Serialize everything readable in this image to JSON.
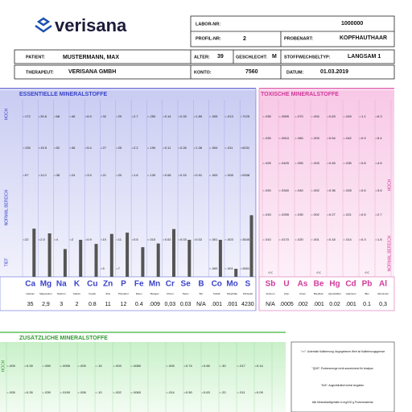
{
  "logo": "verisana",
  "header": {
    "labor_nr": {
      "label": "LABOR-NR:",
      "value": "1000000"
    },
    "profil_nr": {
      "label": "PROFIL-NR:",
      "value": "2"
    },
    "probenart": {
      "label": "PROBENART:",
      "value": "KOPFHAUTHAAR"
    },
    "patient": {
      "label": "PATIENT:",
      "value": "MUSTERMANN, MAX"
    },
    "alter": {
      "label": "ALTER:",
      "value": "39"
    },
    "geschlecht": {
      "label": "GESCHLECHT:",
      "value": "M"
    },
    "stoffwechseltyp": {
      "label": "STOFFWECHSELTYP:",
      "value": "LANGSAM 1"
    },
    "therapeut": {
      "label": "THERAPEUT:",
      "value": "VERISANA GMBH"
    },
    "konto": {
      "label": "KONTO:",
      "value": "7560"
    },
    "datum": {
      "label": "DATUM:",
      "value": "01.03.2019"
    }
  },
  "essential": {
    "title": "ESSENTIELLE MINERALSTOFFE",
    "axis_labels": [
      "HOCH",
      "NORMAL BEREICH",
      "TIEF"
    ],
    "symbols": [
      "Ca",
      "Mg",
      "Na",
      "K",
      "Cu",
      "Zn",
      "P",
      "Fe",
      "Mn",
      "Cr",
      "Se",
      "B",
      "Co",
      "Mo",
      "S"
    ],
    "names": [
      "Calcium",
      "Magnesium",
      "Natrium",
      "Kalium",
      "Kupfer",
      "Zink",
      "Phosphor",
      "Eisen",
      "Mangan",
      "Chrom",
      "Selen",
      "Bor",
      "Kobalt",
      "Molybdän",
      "Schwefel"
    ],
    "scale": [
      [
        "172",
        "30.6",
        "68",
        "46",
        "6.9",
        "32",
        "29",
        "2.7",
        ".250",
        "0.14",
        "0.33",
        "1.80",
        ".005",
        ".013",
        "7125"
      ],
      [
        "135",
        "15.5",
        "52",
        "36",
        "5.4",
        "27",
        "25",
        "2.2",
        ".190",
        "0.11",
        "0.26",
        "1.36",
        ".004",
        ".011",
        "6231"
      ],
      [
        "97",
        "11.0",
        "38",
        "24",
        "3.9",
        "21",
        "20",
        "1.6",
        ".130",
        "0.08",
        "0.15",
        "0.91",
        ".003",
        ".008",
        "5338"
      ],
      [
        "22",
        "2.0",
        "4",
        "2",
        "0.9",
        "10",
        "11",
        "0.5",
        ".010",
        "0.02",
        "0.03",
        "0.02",
        ".001",
        ".003",
        "3545"
      ],
      [
        null,
        null,
        null,
        null,
        null,
        "5",
        "7",
        null,
        null,
        null,
        null,
        null,
        ".000",
        ".001",
        "2651"
      ]
    ],
    "results": [
      "35",
      "2,9",
      "3",
      "2",
      "0.8",
      "11",
      "12",
      "0.4",
      ".009",
      "0,03",
      "0.03",
      "N/A",
      ".001",
      ".001",
      "4230"
    ]
  },
  "toxic": {
    "title": "TOXISCHE MINERALSTOFFE",
    "axis_labels": [
      "HOCH",
      "NORMAL BEREICH"
    ],
    "symbols": [
      "Sb",
      "U",
      "As",
      "Be",
      "Hg",
      "Cd",
      "Pb",
      "Al"
    ],
    "names": [
      "Antimon",
      "Uran",
      "Arsen",
      "Beryllium",
      "Quecksilber",
      "Cadmium",
      "Blei",
      "Aluminium"
    ],
    "scale": [
      [
        ".035",
        ".0595",
        ".070",
        ".004",
        "0.63",
        ".049",
        "1.1",
        "6.3"
      ],
      [
        ".030",
        ".0510",
        ".060",
        ".003",
        "0.54",
        ".042",
        "0.9",
        "5.4"
      ],
      [
        ".025",
        ".0425",
        ".050",
        ".003",
        "0.45",
        ".035",
        "0.8",
        "4.5"
      ],
      [
        ".020",
        ".0340",
        ".040",
        ".002",
        "0.36",
        ".028",
        "0.6",
        "3.6"
      ],
      [
        ".015",
        ".0255",
        ".030",
        ".002",
        "0.27",
        ".021",
        "0.5",
        "2.7"
      ],
      [
        ".010",
        ".0170",
        ".020",
        ".001",
        "0.18",
        ".014",
        "0.3",
        "1.8"
      ]
    ],
    "flags": [
      "<<",
      null,
      null,
      "<<",
      null,
      null,
      "<<",
      null
    ],
    "results": [
      "N/A",
      ".0005",
      ".002",
      ".001",
      "0.02",
      ".001",
      "0.1",
      "0,3"
    ]
  },
  "additional": {
    "title": "ZUSÄTZLICHE MINERALSTOFFE",
    "axis_labels": [
      "HOCH"
    ],
    "scale": [
      [
        ".009",
        "0.39",
        ".059",
        ".0095",
        ".009",
        ".15",
        ".003",
        ".0080",
        null,
        ".009",
        "0.74",
        "0.65",
        ".30",
        ".017",
        "0.14"
      ],
      [
        ".005",
        "0.26",
        ".039",
        ".0190",
        ".006",
        ".10",
        ".002",
        ".0060",
        null,
        ".014",
        "0.50",
        "0.63",
        ".20",
        ".011",
        "0.09"
      ]
    ]
  },
  "notes": [
    "\"<<\": Unterhalb Kalibrierung: Angegebener Wert ist Kalibrierungsgrenze",
    "\"QNS\": Probenmenge nicht ausreichend für Analyse.",
    "\"N/A\": Augenblicklich keine Angaben.",
    "Alle Mineralstoffgehalte in mg/100 g Probenmaterial."
  ]
}
